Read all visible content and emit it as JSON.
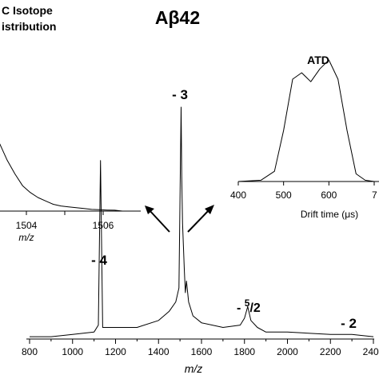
{
  "title": "Aβ42",
  "chart_data": [
    {
      "type": "line",
      "name": "main mass spectrum",
      "xlabel": "m/z",
      "xlim": [
        800,
        2400
      ],
      "xticks": [
        "800",
        "1000",
        "1200",
        "1400",
        "1600",
        "1800",
        "2000",
        "2200",
        "2400"
      ],
      "series": [
        {
          "x": [
            800,
            900,
            1000,
            1100,
            1120,
            1130,
            1140,
            1200,
            1300,
            1400,
            1450,
            1480,
            1495,
            1500,
            1505,
            1508,
            1512,
            1516,
            1520,
            1525,
            1530,
            1540,
            1560,
            1600,
            1700,
            1780,
            1800,
            1815,
            1830,
            1860,
            1900,
            2000,
            2200,
            2300,
            2400
          ],
          "y": [
            1,
            1,
            2,
            3,
            6,
            77,
            5,
            5,
            5,
            8,
            12,
            16,
            22,
            60,
            100,
            70,
            50,
            40,
            30,
            20,
            25,
            16,
            10,
            7,
            5,
            6,
            9,
            14,
            8,
            5,
            3,
            3,
            2,
            2,
            1
          ]
        }
      ],
      "peak_labels": [
        {
          "text": "- 4",
          "x": 1130
        },
        {
          "text": "- 3",
          "x": 1505
        },
        {
          "base": "- ",
          "sup": "5",
          "sub": "2",
          "x": 1810
        },
        {
          "text": "- 2",
          "x": 2330
        }
      ]
    },
    {
      "type": "line",
      "name": "isotope distribution inset",
      "title_lines": [
        "C Isotope",
        "istribution"
      ],
      "xlabel": "m/z",
      "xticks": [
        "1504",
        "1506"
      ],
      "series": [
        {
          "x": [
            1501.8,
            1502.0,
            1502.2,
            1502.4,
            1502.6,
            1502.8,
            1503.0,
            1503.2,
            1503.4,
            1503.6,
            1503.8,
            1504.0,
            1504.2,
            1504.4,
            1504.6,
            1504.8,
            1505.0,
            1505.2,
            1505.4,
            1505.6,
            1505.8,
            1506.0,
            1506.2,
            1506.4
          ],
          "y": [
            75,
            96,
            100,
            93,
            82,
            68,
            55,
            40,
            30,
            22,
            15,
            11,
            8,
            6,
            4,
            3,
            2.5,
            2,
            1.5,
            1,
            0.8,
            0.6,
            0.5,
            0
          ]
        }
      ]
    },
    {
      "type": "line",
      "name": "ATD inset",
      "title": "ATD",
      "xlabel": "Drift time (μs)",
      "xlim": [
        400,
        700
      ],
      "xticks": [
        "400",
        "500",
        "600",
        "7"
      ],
      "series": [
        {
          "x": [
            400,
            450,
            480,
            500,
            520,
            540,
            560,
            580,
            600,
            620,
            640,
            660,
            680,
            700
          ],
          "y": [
            0,
            1,
            8,
            40,
            80,
            85,
            78,
            88,
            95,
            80,
            40,
            6,
            1,
            0
          ]
        }
      ]
    }
  ]
}
